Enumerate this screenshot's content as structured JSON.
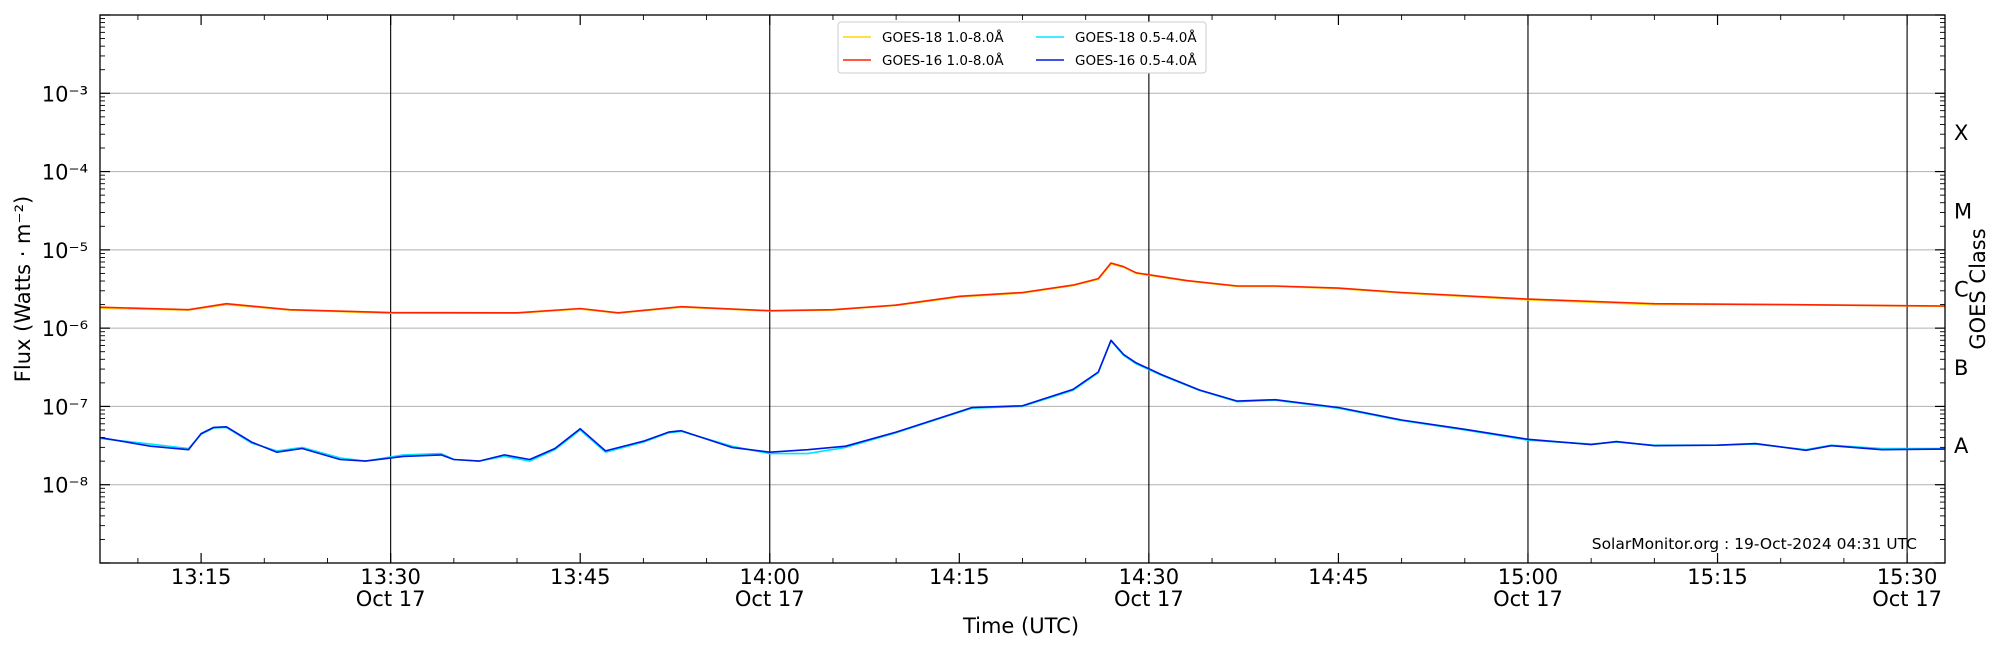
{
  "chart_data": {
    "type": "line",
    "x_axis_label": "Time (UTC)",
    "y_axis_label": "Flux (Watts · m⁻²)",
    "y_scale": "log",
    "ylim": [
      "1e-9",
      "1e-2"
    ],
    "y_ticks": [
      {
        "value": "1e-8",
        "label": "10⁻⁸"
      },
      {
        "value": "1e-7",
        "label": "10⁻⁷"
      },
      {
        "value": "1e-6",
        "label": "10⁻⁶"
      },
      {
        "value": "1e-5",
        "label": "10⁻⁵"
      },
      {
        "value": "1e-4",
        "label": "10⁻⁴"
      },
      {
        "value": "1e-3",
        "label": "10⁻³"
      }
    ],
    "right_axis_label": "GOES Class",
    "class_labels": [
      {
        "label": "A",
        "value": "1e-8"
      },
      {
        "label": "B",
        "value": "1e-7"
      },
      {
        "label": "C",
        "value": "1e-6"
      },
      {
        "label": "M",
        "value": "1e-5"
      },
      {
        "label": "X",
        "value": "1e-4"
      }
    ],
    "xlim": [
      "2024-10-17 13:07",
      "2024-10-17 15:33"
    ],
    "x_ticks": [
      {
        "time": "2024-10-17 13:15",
        "label": "13:15",
        "sublabel": "",
        "major": false
      },
      {
        "time": "2024-10-17 13:30",
        "label": "13:30",
        "sublabel": "Oct 17",
        "major": true
      },
      {
        "time": "2024-10-17 13:45",
        "label": "13:45",
        "sublabel": "",
        "major": false
      },
      {
        "time": "2024-10-17 14:00",
        "label": "14:00",
        "sublabel": "Oct 17",
        "major": true
      },
      {
        "time": "2024-10-17 14:15",
        "label": "14:15",
        "sublabel": "",
        "major": false
      },
      {
        "time": "2024-10-17 14:30",
        "label": "14:30",
        "sublabel": "Oct 17",
        "major": true
      },
      {
        "time": "2024-10-17 14:45",
        "label": "14:45",
        "sublabel": "",
        "major": false
      },
      {
        "time": "2024-10-17 15:00",
        "label": "15:00",
        "sublabel": "Oct 17",
        "major": true
      },
      {
        "time": "2024-10-17 15:15",
        "label": "15:15",
        "sublabel": "",
        "major": false
      },
      {
        "time": "2024-10-17 15:30",
        "label": "15:30",
        "sublabel": "Oct 17",
        "major": true
      }
    ],
    "grid": "horizontal at decades; vertical lines at :00 and :30",
    "legend": {
      "placement": "top-center",
      "ncol": 2,
      "entries": [
        {
          "label": "GOES-18 1.0-8.0Å",
          "color": "#ffd700"
        },
        {
          "label": "GOES-18 0.5-4.0Å",
          "color": "#00e5ff"
        },
        {
          "label": "GOES-16 1.0-8.0Å",
          "color": "#ff2200"
        },
        {
          "label": "GOES-16 0.5-4.0Å",
          "color": "#0018e0"
        }
      ]
    },
    "annotation": "SolarMonitor.org : 19-Oct-2024 04:31 UTC",
    "series": [
      {
        "name": "GOES-18 1.0-8.0Å",
        "color": "#ffd700",
        "points": [
          [
            "2024-10-17 13:07",
            1.8e-06
          ],
          [
            "2024-10-17 13:14",
            1.7e-06
          ],
          [
            "2024-10-17 13:17",
            2e-06
          ],
          [
            "2024-10-17 13:22",
            1.7e-06
          ],
          [
            "2024-10-17 13:30",
            1.55e-06
          ],
          [
            "2024-10-17 13:40",
            1.55e-06
          ],
          [
            "2024-10-17 13:45",
            1.75e-06
          ],
          [
            "2024-10-17 13:48",
            1.55e-06
          ],
          [
            "2024-10-17 13:53",
            1.85e-06
          ],
          [
            "2024-10-17 14:00",
            1.65e-06
          ],
          [
            "2024-10-17 14:05",
            1.7e-06
          ],
          [
            "2024-10-17 14:10",
            1.95e-06
          ],
          [
            "2024-10-17 14:15",
            2.5e-06
          ],
          [
            "2024-10-17 14:20",
            2.8e-06
          ],
          [
            "2024-10-17 14:24",
            3.5e-06
          ],
          [
            "2024-10-17 14:26",
            4.2e-06
          ],
          [
            "2024-10-17 14:27",
            6.6e-06
          ],
          [
            "2024-10-17 14:28",
            6e-06
          ],
          [
            "2024-10-17 14:29",
            5e-06
          ],
          [
            "2024-10-17 14:33",
            4e-06
          ],
          [
            "2024-10-17 14:37",
            3.4e-06
          ],
          [
            "2024-10-17 14:40",
            3.4e-06
          ],
          [
            "2024-10-17 14:45",
            3.2e-06
          ],
          [
            "2024-10-17 14:50",
            2.8e-06
          ],
          [
            "2024-10-17 15:00",
            2.3e-06
          ],
          [
            "2024-10-17 15:10",
            2e-06
          ],
          [
            "2024-10-17 15:20",
            2e-06
          ],
          [
            "2024-10-17 15:33",
            1.9e-06
          ]
        ]
      },
      {
        "name": "GOES-18 0.5-4.0Å",
        "color": "#00e5ff",
        "points": [
          [
            "2024-10-17 13:07",
            3.9e-08
          ],
          [
            "2024-10-17 13:11",
            3.3e-08
          ],
          [
            "2024-10-17 13:14",
            2.9e-08
          ],
          [
            "2024-10-17 13:15",
            4.4e-08
          ],
          [
            "2024-10-17 13:16",
            5.3e-08
          ],
          [
            "2024-10-17 13:17",
            5.4e-08
          ],
          [
            "2024-10-17 13:19",
            3.4e-08
          ],
          [
            "2024-10-17 13:21",
            2.7e-08
          ],
          [
            "2024-10-17 13:23",
            3e-08
          ],
          [
            "2024-10-17 13:26",
            2.2e-08
          ],
          [
            "2024-10-17 13:28",
            2e-08
          ],
          [
            "2024-10-17 13:31",
            2.4e-08
          ],
          [
            "2024-10-17 13:34",
            2.5e-08
          ],
          [
            "2024-10-17 13:35",
            2.1e-08
          ],
          [
            "2024-10-17 13:37",
            2e-08
          ],
          [
            "2024-10-17 13:39",
            2.3e-08
          ],
          [
            "2024-10-17 13:41",
            2e-08
          ],
          [
            "2024-10-17 13:43",
            2.8e-08
          ],
          [
            "2024-10-17 13:45",
            5e-08
          ],
          [
            "2024-10-17 13:47",
            2.6e-08
          ],
          [
            "2024-10-17 13:50",
            3.5e-08
          ],
          [
            "2024-10-17 13:52",
            4.6e-08
          ],
          [
            "2024-10-17 13:53",
            4.8e-08
          ],
          [
            "2024-10-17 13:57",
            3.1e-08
          ],
          [
            "2024-10-17 14:00",
            2.5e-08
          ],
          [
            "2024-10-17 14:03",
            2.5e-08
          ],
          [
            "2024-10-17 14:06",
            3e-08
          ],
          [
            "2024-10-17 14:10",
            4.6e-08
          ],
          [
            "2024-10-17 14:14",
            7.5e-08
          ],
          [
            "2024-10-17 14:16",
            9.5e-08
          ],
          [
            "2024-10-17 14:20",
            1e-07
          ],
          [
            "2024-10-17 14:24",
            1.6e-07
          ],
          [
            "2024-10-17 14:26",
            2.7e-07
          ],
          [
            "2024-10-17 14:27",
            6.9e-07
          ],
          [
            "2024-10-17 14:28",
            4.5e-07
          ],
          [
            "2024-10-17 14:29",
            3.5e-07
          ],
          [
            "2024-10-17 14:31",
            2.5e-07
          ],
          [
            "2024-10-17 14:34",
            1.6e-07
          ],
          [
            "2024-10-17 14:37",
            1.15e-07
          ],
          [
            "2024-10-17 14:40",
            1.2e-07
          ],
          [
            "2024-10-17 14:45",
            9.5e-08
          ],
          [
            "2024-10-17 14:50",
            6.6e-08
          ],
          [
            "2024-10-17 14:55",
            5e-08
          ],
          [
            "2024-10-17 15:00",
            3.7e-08
          ],
          [
            "2024-10-17 15:05",
            3.3e-08
          ],
          [
            "2024-10-17 15:07",
            3.5e-08
          ],
          [
            "2024-10-17 15:10",
            3.2e-08
          ],
          [
            "2024-10-17 15:15",
            3.2e-08
          ],
          [
            "2024-10-17 15:18",
            3.3e-08
          ],
          [
            "2024-10-17 15:22",
            2.8e-08
          ],
          [
            "2024-10-17 15:24",
            3.2e-08
          ],
          [
            "2024-10-17 15:28",
            2.9e-08
          ],
          [
            "2024-10-17 15:33",
            2.9e-08
          ]
        ]
      },
      {
        "name": "GOES-16 1.0-8.0Å",
        "color": "#ff2200",
        "points": [
          [
            "2024-10-17 13:07",
            1.85e-06
          ],
          [
            "2024-10-17 13:14",
            1.72e-06
          ],
          [
            "2024-10-17 13:17",
            2.05e-06
          ],
          [
            "2024-10-17 13:22",
            1.72e-06
          ],
          [
            "2024-10-17 13:30",
            1.58e-06
          ],
          [
            "2024-10-17 13:40",
            1.57e-06
          ],
          [
            "2024-10-17 13:45",
            1.78e-06
          ],
          [
            "2024-10-17 13:48",
            1.57e-06
          ],
          [
            "2024-10-17 13:53",
            1.88e-06
          ],
          [
            "2024-10-17 14:00",
            1.67e-06
          ],
          [
            "2024-10-17 14:05",
            1.72e-06
          ],
          [
            "2024-10-17 14:10",
            1.97e-06
          ],
          [
            "2024-10-17 14:15",
            2.55e-06
          ],
          [
            "2024-10-17 14:20",
            2.85e-06
          ],
          [
            "2024-10-17 14:24",
            3.55e-06
          ],
          [
            "2024-10-17 14:26",
            4.3e-06
          ],
          [
            "2024-10-17 14:27",
            6.8e-06
          ],
          [
            "2024-10-17 14:28",
            6.1e-06
          ],
          [
            "2024-10-17 14:29",
            5.1e-06
          ],
          [
            "2024-10-17 14:33",
            4.05e-06
          ],
          [
            "2024-10-17 14:37",
            3.45e-06
          ],
          [
            "2024-10-17 14:40",
            3.45e-06
          ],
          [
            "2024-10-17 14:45",
            3.25e-06
          ],
          [
            "2024-10-17 14:50",
            2.85e-06
          ],
          [
            "2024-10-17 15:00",
            2.35e-06
          ],
          [
            "2024-10-17 15:10",
            2.05e-06
          ],
          [
            "2024-10-17 15:20",
            2e-06
          ],
          [
            "2024-10-17 15:33",
            1.92e-06
          ]
        ]
      },
      {
        "name": "GOES-16 0.5-4.0Å",
        "color": "#0018e0",
        "points": [
          [
            "2024-10-17 13:07",
            4e-08
          ],
          [
            "2024-10-17 13:11",
            3.1e-08
          ],
          [
            "2024-10-17 13:14",
            2.8e-08
          ],
          [
            "2024-10-17 13:15",
            4.5e-08
          ],
          [
            "2024-10-17 13:16",
            5.4e-08
          ],
          [
            "2024-10-17 13:17",
            5.5e-08
          ],
          [
            "2024-10-17 13:19",
            3.5e-08
          ],
          [
            "2024-10-17 13:21",
            2.6e-08
          ],
          [
            "2024-10-17 13:23",
            2.9e-08
          ],
          [
            "2024-10-17 13:26",
            2.1e-08
          ],
          [
            "2024-10-17 13:28",
            2e-08
          ],
          [
            "2024-10-17 13:31",
            2.3e-08
          ],
          [
            "2024-10-17 13:34",
            2.4e-08
          ],
          [
            "2024-10-17 13:35",
            2.1e-08
          ],
          [
            "2024-10-17 13:37",
            2e-08
          ],
          [
            "2024-10-17 13:39",
            2.4e-08
          ],
          [
            "2024-10-17 13:41",
            2.1e-08
          ],
          [
            "2024-10-17 13:43",
            2.9e-08
          ],
          [
            "2024-10-17 13:45",
            5.2e-08
          ],
          [
            "2024-10-17 13:47",
            2.7e-08
          ],
          [
            "2024-10-17 13:50",
            3.6e-08
          ],
          [
            "2024-10-17 13:52",
            4.7e-08
          ],
          [
            "2024-10-17 13:53",
            4.9e-08
          ],
          [
            "2024-10-17 13:57",
            3e-08
          ],
          [
            "2024-10-17 14:00",
            2.6e-08
          ],
          [
            "2024-10-17 14:03",
            2.8e-08
          ],
          [
            "2024-10-17 14:06",
            3.1e-08
          ],
          [
            "2024-10-17 14:10",
            4.7e-08
          ],
          [
            "2024-10-17 14:14",
            7.6e-08
          ],
          [
            "2024-10-17 14:16",
            9.7e-08
          ],
          [
            "2024-10-17 14:20",
            1.02e-07
          ],
          [
            "2024-10-17 14:24",
            1.65e-07
          ],
          [
            "2024-10-17 14:26",
            2.75e-07
          ],
          [
            "2024-10-17 14:27",
            7e-07
          ],
          [
            "2024-10-17 14:28",
            4.6e-07
          ],
          [
            "2024-10-17 14:29",
            3.6e-07
          ],
          [
            "2024-10-17 14:31",
            2.55e-07
          ],
          [
            "2024-10-17 14:34",
            1.62e-07
          ],
          [
            "2024-10-17 14:37",
            1.17e-07
          ],
          [
            "2024-10-17 14:40",
            1.22e-07
          ],
          [
            "2024-10-17 14:45",
            9.7e-08
          ],
          [
            "2024-10-17 14:50",
            6.7e-08
          ],
          [
            "2024-10-17 14:55",
            5.1e-08
          ],
          [
            "2024-10-17 15:00",
            3.8e-08
          ],
          [
            "2024-10-17 15:05",
            3.25e-08
          ],
          [
            "2024-10-17 15:07",
            3.55e-08
          ],
          [
            "2024-10-17 15:10",
            3.15e-08
          ],
          [
            "2024-10-17 15:15",
            3.2e-08
          ],
          [
            "2024-10-17 15:18",
            3.35e-08
          ],
          [
            "2024-10-17 15:22",
            2.75e-08
          ],
          [
            "2024-10-17 15:24",
            3.15e-08
          ],
          [
            "2024-10-17 15:28",
            2.8e-08
          ],
          [
            "2024-10-17 15:33",
            2.85e-08
          ]
        ]
      }
    ]
  }
}
